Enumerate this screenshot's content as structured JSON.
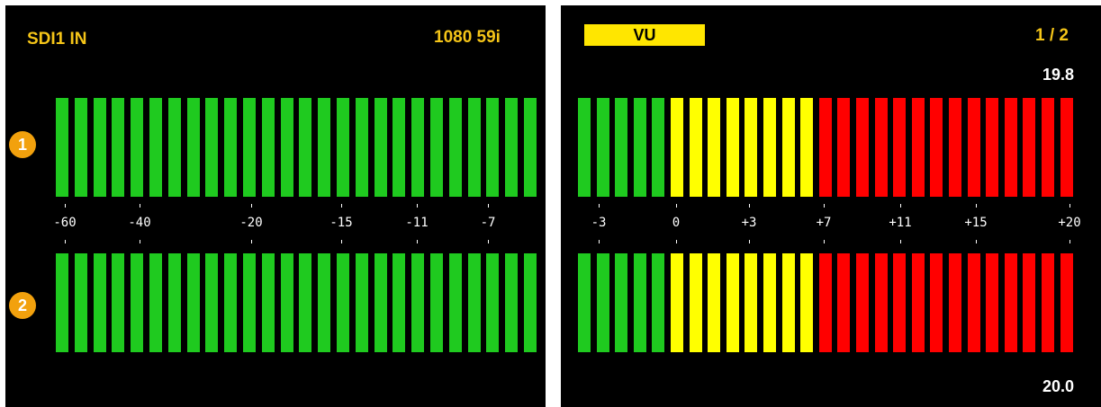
{
  "left_screen": {
    "input_label": "SDI1 IN",
    "format_label": "1080 59i",
    "channels": [
      {
        "number": "1",
        "segments": 26
      },
      {
        "number": "2",
        "segments": 26
      }
    ],
    "scale_ticks": [
      "-60",
      "-40",
      "-20",
      "-15",
      "-11",
      "-7"
    ],
    "colors": {
      "green": "#1fca1f"
    }
  },
  "right_screen": {
    "mode_label": "VU",
    "page_label": "1 / 2",
    "channel_1_value": "19.8",
    "channel_2_value": "20.0",
    "scale_ticks": [
      "-3",
      "0",
      "+3",
      "+7",
      "+11",
      "+15",
      "+20"
    ],
    "segments": {
      "green": 5,
      "yellow": 8,
      "red": 14
    },
    "colors": {
      "green": "#1fca1f",
      "yellow": "#ffff00",
      "red": "#ff0000"
    }
  }
}
